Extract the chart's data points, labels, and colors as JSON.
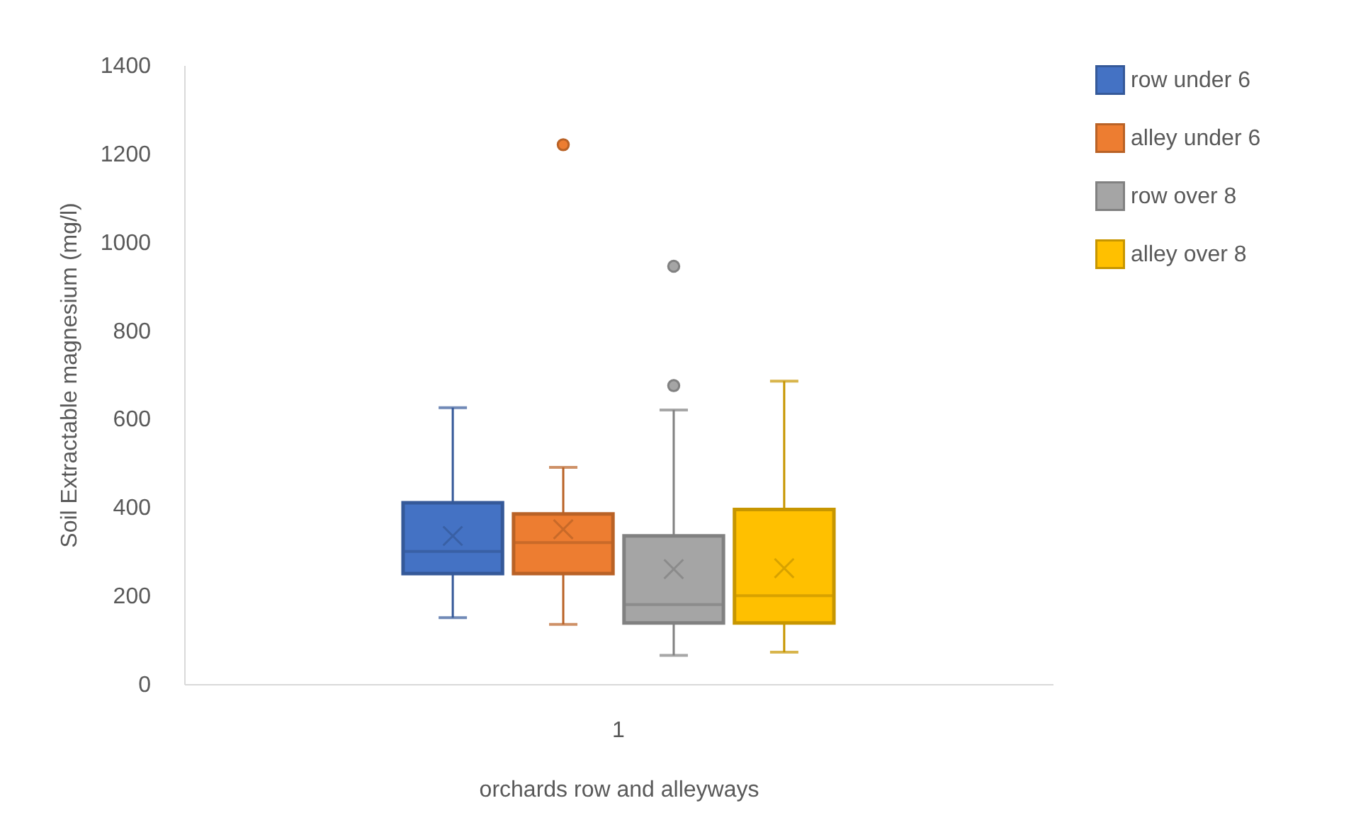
{
  "chart_data": {
    "type": "box",
    "xlabel": "orchards row and alleyways",
    "ylabel": "Soil Extractable magnesium (mg/l)",
    "categories": [
      "1"
    ],
    "ylim": [
      0,
      1400
    ],
    "yticks": [
      0,
      200,
      400,
      600,
      800,
      1000,
      1200,
      1400
    ],
    "grid": false,
    "legend": "right",
    "series": [
      {
        "name": "row under 6",
        "color": "#4472c4",
        "boxes": [
          {
            "low": 150,
            "q1": 250,
            "median": 300,
            "q3": 410,
            "high": 625,
            "mean": 335
          }
        ]
      },
      {
        "name": "alley under 6",
        "color": "#ed7d31",
        "boxes": [
          {
            "low": 135,
            "q1": 250,
            "median": 320,
            "q3": 385,
            "high": 490,
            "mean": 350,
            "outliers": [
              1220
            ]
          }
        ]
      },
      {
        "name": "row over 8",
        "color": "#a5a5a5",
        "boxes": [
          {
            "low": 65,
            "q1": 138,
            "median": 180,
            "q3": 335,
            "high": 620,
            "mean": 260,
            "outliers": [
              675,
              945
            ]
          }
        ]
      },
      {
        "name": "alley over 8",
        "color": "#ffc000",
        "boxes": [
          {
            "low": 72,
            "q1": 138,
            "median": 200,
            "q3": 395,
            "high": 685,
            "mean": 262
          }
        ]
      }
    ]
  }
}
